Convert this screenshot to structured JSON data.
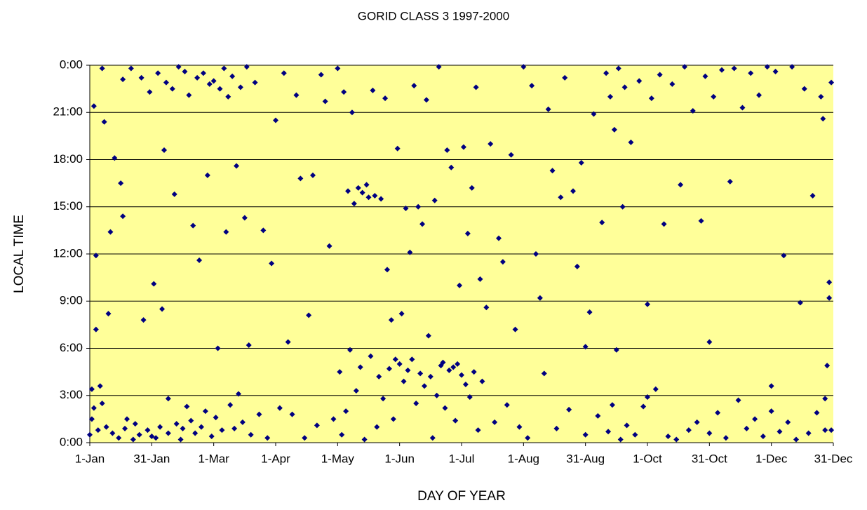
{
  "chart_data": {
    "type": "scatter",
    "title": "GORID CLASS 3 1997-2000",
    "x_label": "DAY OF YEAR",
    "y_label": "LOCAL TIME",
    "xlim": [
      0,
      360
    ],
    "xticks": [
      {
        "value": 0,
        "label": "1-Jan"
      },
      {
        "value": 30,
        "label": "31-Jan"
      },
      {
        "value": 60,
        "label": "1-Mar"
      },
      {
        "value": 90,
        "label": "1-Apr"
      },
      {
        "value": 120,
        "label": "1-May"
      },
      {
        "value": 150,
        "label": "1-Jun"
      },
      {
        "value": 180,
        "label": "1-Jul"
      },
      {
        "value": 210,
        "label": "1-Aug"
      },
      {
        "value": 240,
        "label": "31-Aug"
      },
      {
        "value": 270,
        "label": "1-Oct"
      },
      {
        "value": 300,
        "label": "31-Oct"
      },
      {
        "value": 330,
        "label": "1-Dec"
      },
      {
        "value": 360,
        "label": "31-Dec"
      }
    ],
    "ylim": [
      0,
      24
    ],
    "yticks": [
      {
        "value": 0,
        "label": "0:00"
      },
      {
        "value": 3,
        "label": "3:00"
      },
      {
        "value": 6,
        "label": "6:00"
      },
      {
        "value": 9,
        "label": "9:00"
      },
      {
        "value": 12,
        "label": "12:00"
      },
      {
        "value": 15,
        "label": "15:00"
      },
      {
        "value": 18,
        "label": "18:00"
      },
      {
        "value": 21,
        "label": "21:00"
      },
      {
        "value": 24,
        "label": "0:00"
      }
    ],
    "grid": true,
    "background": "#ffff99",
    "color": "#000080",
    "x": [
      0,
      1,
      1,
      2,
      2,
      3,
      3,
      4,
      5,
      6,
      6,
      7,
      8,
      9,
      10,
      11,
      12,
      14,
      15,
      16,
      16,
      17,
      18,
      20,
      21,
      22,
      24,
      25,
      26,
      28,
      29,
      30,
      31,
      32,
      33,
      34,
      35,
      36,
      37,
      38,
      38,
      40,
      41,
      42,
      43,
      44,
      45,
      46,
      47,
      48,
      49,
      50,
      51,
      52,
      53,
      54,
      55,
      56,
      57,
      58,
      59,
      60,
      61,
      62,
      63,
      64,
      65,
      66,
      67,
      68,
      69,
      70,
      71,
      72,
      73,
      74,
      75,
      76,
      77,
      78,
      80,
      82,
      84,
      86,
      88,
      90,
      92,
      94,
      96,
      98,
      100,
      102,
      104,
      106,
      108,
      110,
      112,
      114,
      116,
      118,
      120,
      121,
      122,
      123,
      124,
      125,
      126,
      127,
      128,
      129,
      130,
      131,
      132,
      133,
      134,
      135,
      136,
      137,
      138,
      139,
      140,
      141,
      142,
      143,
      144,
      145,
      146,
      147,
      148,
      149,
      150,
      151,
      152,
      153,
      154,
      155,
      156,
      157,
      158,
      159,
      160,
      161,
      162,
      163,
      164,
      165,
      166,
      167,
      168,
      169,
      170,
      171,
      172,
      173,
      174,
      175,
      176,
      177,
      178,
      179,
      180,
      181,
      182,
      183,
      184,
      185,
      186,
      187,
      188,
      189,
      190,
      192,
      194,
      196,
      198,
      200,
      202,
      204,
      206,
      208,
      210,
      212,
      214,
      216,
      218,
      220,
      222,
      224,
      226,
      228,
      230,
      232,
      234,
      236,
      238,
      240,
      242,
      244,
      246,
      248,
      250,
      251,
      252,
      253,
      254,
      255,
      256,
      257,
      258,
      259,
      260,
      262,
      264,
      266,
      268,
      270,
      272,
      274,
      276,
      278,
      280,
      282,
      284,
      286,
      288,
      290,
      292,
      294,
      296,
      298,
      300,
      302,
      304,
      306,
      308,
      310,
      312,
      314,
      316,
      318,
      320,
      322,
      324,
      326,
      328,
      330,
      332,
      334,
      336,
      338,
      340,
      342,
      344,
      346,
      348,
      350,
      352,
      354,
      356,
      358,
      355,
      356,
      357,
      358,
      359,
      359,
      330,
      300,
      270,
      240
    ],
    "values": [
      0.5,
      1.5,
      3.4,
      2.2,
      21.4,
      7.2,
      11.9,
      0.8,
      3.6,
      23.8,
      2.5,
      20.4,
      1.0,
      8.2,
      13.4,
      0.6,
      18.1,
      0.3,
      16.5,
      14.4,
      23.1,
      0.9,
      1.5,
      23.8,
      0.2,
      1.2,
      0.5,
      23.2,
      7.8,
      0.8,
      22.3,
      0.4,
      10.1,
      0.3,
      23.5,
      1.0,
      8.5,
      18.6,
      22.9,
      0.6,
      2.8,
      22.5,
      15.8,
      1.2,
      23.9,
      0.2,
      0.9,
      23.6,
      2.3,
      22.1,
      1.4,
      13.8,
      0.6,
      23.2,
      11.6,
      1.0,
      23.5,
      2.0,
      17.0,
      22.8,
      0.4,
      23.0,
      1.6,
      6.0,
      22.5,
      0.8,
      23.8,
      13.4,
      22.0,
      2.4,
      23.3,
      0.9,
      17.6,
      3.1,
      22.6,
      1.3,
      14.3,
      23.9,
      6.2,
      0.5,
      22.9,
      1.8,
      13.5,
      0.3,
      11.4,
      20.5,
      2.2,
      23.5,
      6.4,
      1.8,
      22.1,
      16.8,
      0.3,
      8.1,
      17.0,
      1.1,
      23.4,
      21.7,
      12.5,
      1.5,
      23.8,
      4.5,
      0.5,
      22.3,
      2.0,
      16.0,
      5.9,
      21.0,
      15.2,
      3.3,
      16.2,
      4.8,
      15.9,
      0.2,
      16.4,
      15.6,
      5.5,
      22.4,
      15.7,
      1.0,
      4.2,
      15.5,
      2.8,
      21.9,
      11.0,
      4.7,
      7.8,
      1.5,
      5.3,
      18.7,
      5.0,
      8.2,
      3.9,
      14.9,
      4.6,
      12.1,
      5.3,
      22.7,
      2.5,
      15.0,
      4.4,
      13.9,
      3.6,
      21.8,
      6.8,
      4.2,
      0.3,
      15.4,
      3.0,
      23.9,
      4.9,
      5.1,
      2.2,
      18.6,
      4.6,
      17.5,
      4.8,
      1.4,
      5.0,
      10.0,
      4.3,
      18.8,
      3.7,
      13.3,
      2.9,
      16.2,
      4.5,
      22.6,
      0.8,
      10.4,
      3.9,
      8.6,
      19.0,
      1.3,
      13.0,
      11.5,
      2.4,
      18.3,
      7.2,
      1.0,
      23.9,
      0.3,
      22.7,
      12.0,
      9.2,
      4.4,
      21.2,
      17.3,
      0.9,
      15.6,
      23.2,
      2.1,
      16.0,
      11.2,
      17.8,
      0.5,
      8.3,
      20.9,
      1.7,
      14.0,
      23.5,
      0.7,
      22.0,
      2.4,
      19.9,
      5.9,
      23.8,
      0.2,
      15.0,
      22.6,
      1.1,
      19.1,
      0.5,
      23.0,
      2.3,
      8.8,
      21.9,
      3.4,
      23.4,
      13.9,
      0.4,
      22.8,
      0.2,
      16.4,
      23.9,
      0.8,
      21.1,
      1.3,
      14.1,
      23.3,
      0.6,
      22.0,
      1.9,
      23.7,
      0.3,
      16.6,
      23.8,
      2.7,
      21.3,
      0.9,
      23.5,
      1.5,
      22.1,
      0.4,
      23.9,
      2.0,
      23.6,
      0.7,
      11.9,
      1.3,
      23.9,
      0.2,
      8.9,
      22.5,
      0.6,
      15.7,
      1.9,
      22.0,
      0.8,
      9.2,
      20.6,
      2.8,
      4.9,
      10.2,
      22.9,
      0.8,
      3.6,
      6.4,
      2.9,
      6.1
    ]
  }
}
